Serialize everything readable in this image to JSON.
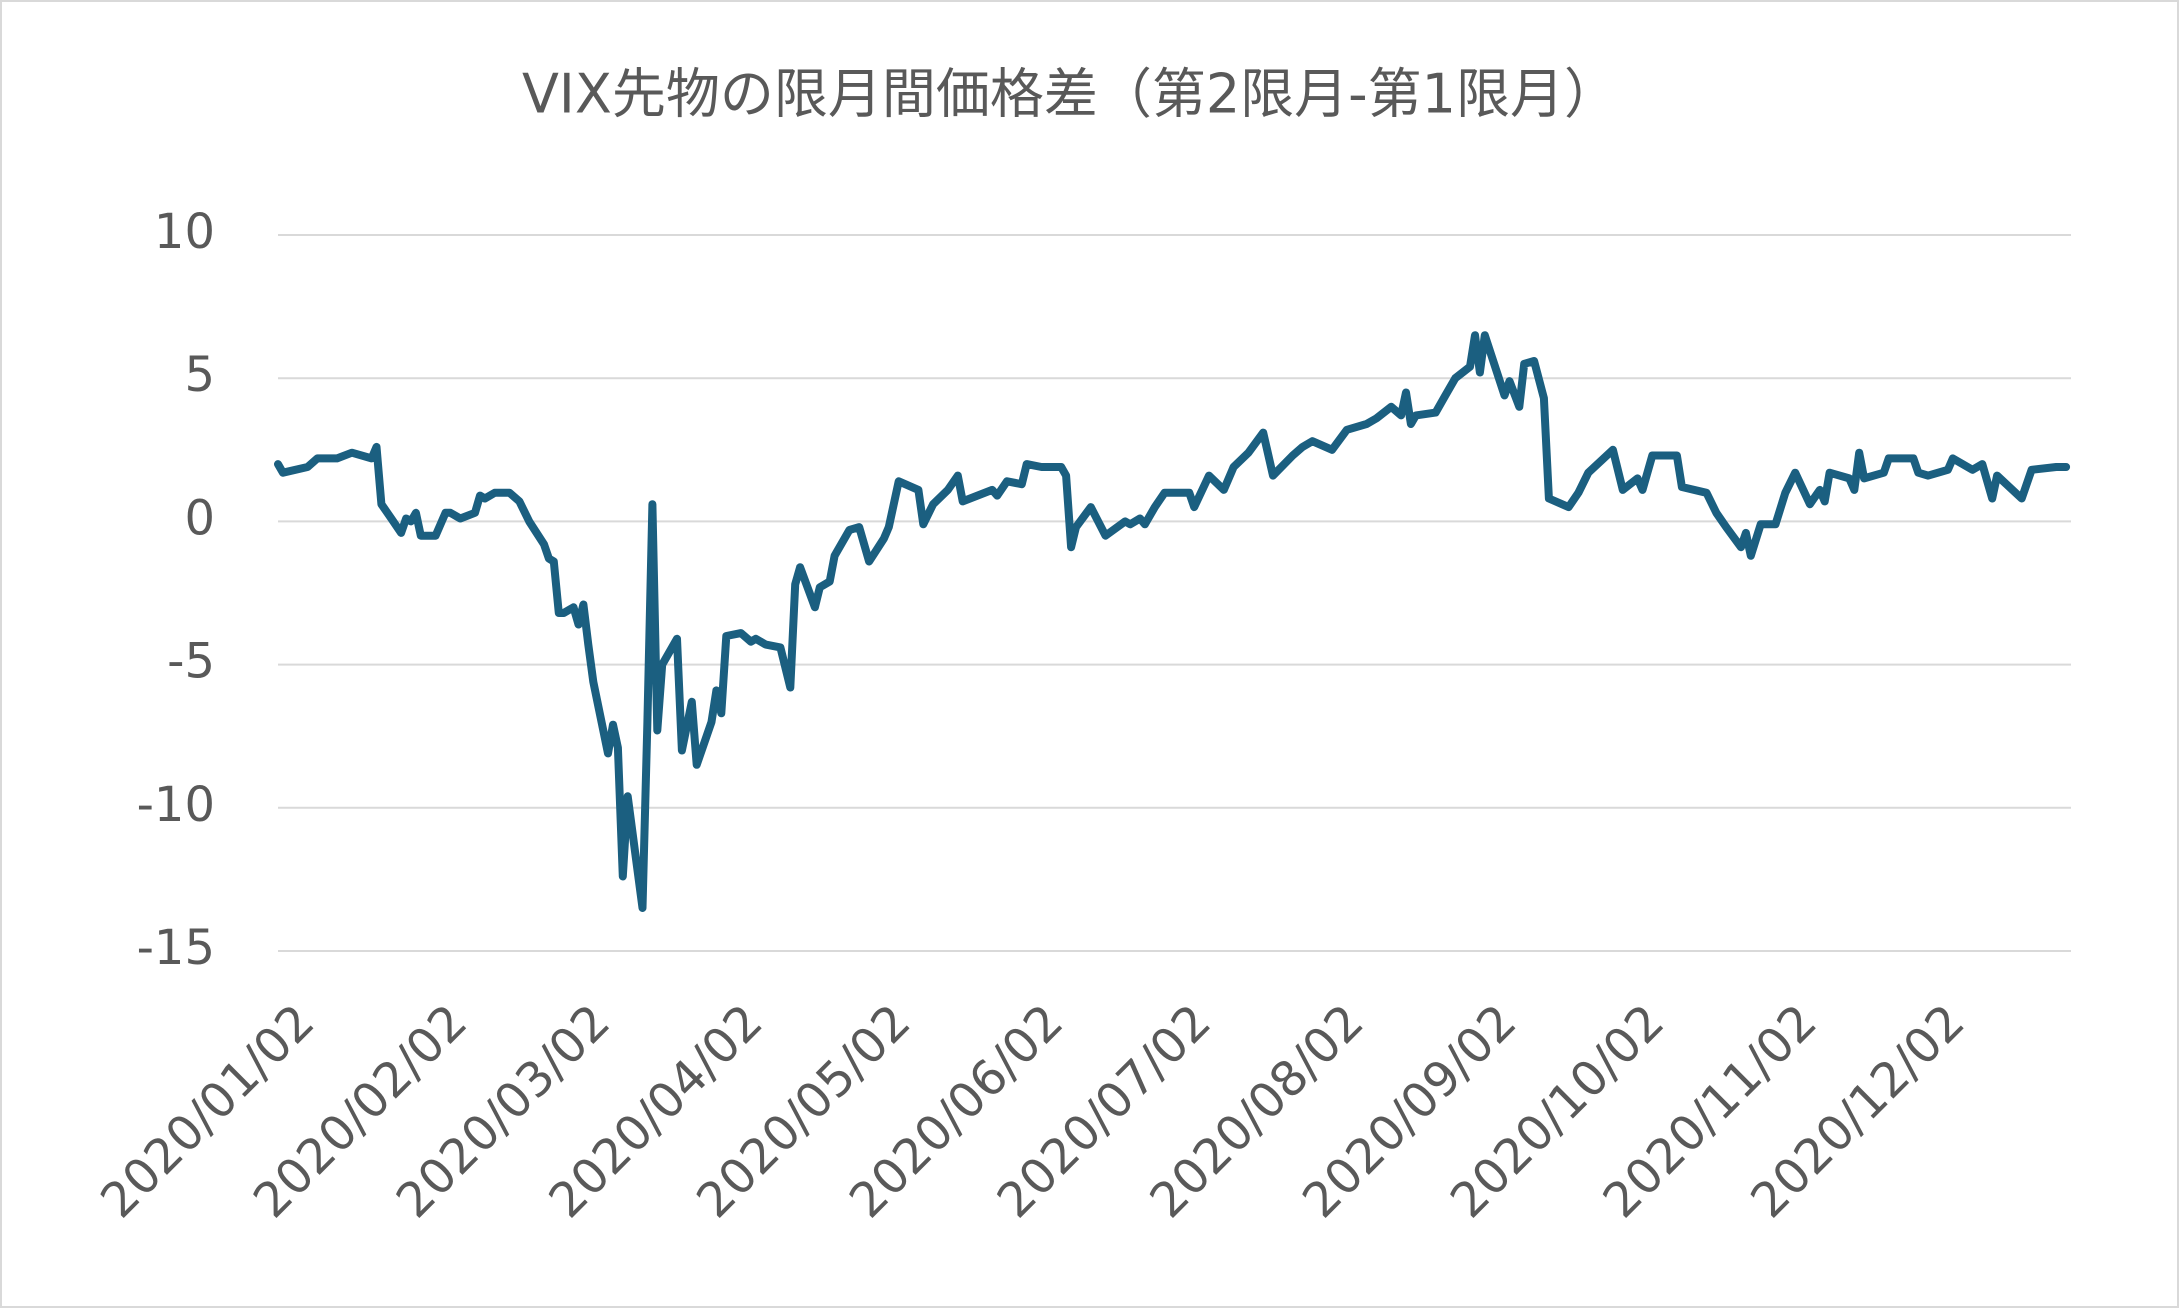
{
  "chart_data": {
    "type": "line",
    "title": "VIX先物の限月間価格差（第2限月-第1限月）",
    "color": "#1b5f80",
    "grid": true,
    "ylim": [
      -15,
      10
    ],
    "yticks": [
      -15,
      -10,
      -5,
      0,
      5,
      10
    ],
    "xlim": [
      "2020/01/02",
      "2020/12/31"
    ],
    "xticks": [
      "2020/01/02",
      "2020/02/02",
      "2020/03/02",
      "2020/04/02",
      "2020/05/02",
      "2020/06/02",
      "2020/07/02",
      "2020/08/02",
      "2020/09/02",
      "2020/10/02",
      "2020/11/02",
      "2020/12/02"
    ],
    "x": [
      "2020/01/02",
      "2020/01/03",
      "2020/01/08",
      "2020/01/10",
      "2020/01/14",
      "2020/01/17",
      "2020/01/21",
      "2020/01/22",
      "2020/01/23",
      "2020/01/25",
      "2020/01/27",
      "2020/01/28",
      "2020/01/29",
      "2020/01/30",
      "2020/01/31",
      "2020/02/03",
      "2020/02/05",
      "2020/02/06",
      "2020/02/08",
      "2020/02/11",
      "2020/02/12",
      "2020/02/13",
      "2020/02/15",
      "2020/02/18",
      "2020/02/20",
      "2020/02/22",
      "2020/02/25",
      "2020/02/26",
      "2020/02/27",
      "2020/02/28",
      "2020/02/29",
      "2020/03/02",
      "2020/03/03",
      "2020/03/04",
      "2020/03/05",
      "2020/03/06",
      "2020/03/09",
      "2020/03/10",
      "2020/03/11",
      "2020/03/12",
      "2020/03/13",
      "2020/03/16",
      "2020/03/17",
      "2020/03/18",
      "2020/03/19",
      "2020/03/20",
      "2020/03/23",
      "2020/03/24",
      "2020/03/26",
      "2020/03/27",
      "2020/03/30",
      "2020/03/31",
      "2020/04/01",
      "2020/04/02",
      "2020/04/05",
      "2020/04/07",
      "2020/04/08",
      "2020/04/10",
      "2020/04/13",
      "2020/04/15",
      "2020/04/16",
      "2020/04/17",
      "2020/04/20",
      "2020/04/21",
      "2020/04/23",
      "2020/04/24",
      "2020/04/27",
      "2020/04/29",
      "2020/05/01",
      "2020/05/04",
      "2020/05/05",
      "2020/05/07",
      "2020/05/11",
      "2020/05/12",
      "2020/05/14",
      "2020/05/17",
      "2020/05/19",
      "2020/05/20",
      "2020/05/26",
      "2020/05/27",
      "2020/05/29",
      "2020/06/01",
      "2020/06/02",
      "2020/06/05",
      "2020/06/09",
      "2020/06/10",
      "2020/06/11",
      "2020/06/12",
      "2020/06/15",
      "2020/06/18",
      "2020/06/22",
      "2020/06/23",
      "2020/06/25",
      "2020/06/26",
      "2020/06/28",
      "2020/06/30",
      "2020/07/05",
      "2020/07/06",
      "2020/07/09",
      "2020/07/12",
      "2020/07/14",
      "2020/07/17",
      "2020/07/20",
      "2020/07/22",
      "2020/07/26",
      "2020/07/28",
      "2020/07/30",
      "2020/08/03",
      "2020/08/06",
      "2020/08/10",
      "2020/08/12",
      "2020/08/15",
      "2020/08/17",
      "2020/08/18",
      "2020/08/19",
      "2020/08/20",
      "2020/08/24",
      "2020/08/26",
      "2020/08/28",
      "2020/08/31",
      "2020/09/01",
      "2020/09/02",
      "2020/09/03",
      "2020/09/07",
      "2020/09/08",
      "2020/09/10",
      "2020/09/11",
      "2020/09/13",
      "2020/09/15",
      "2020/09/16",
      "2020/09/20",
      "2020/09/22",
      "2020/09/24",
      "2020/09/29",
      "2020/10/01",
      "2020/10/04",
      "2020/10/05",
      "2020/10/07",
      "2020/10/12",
      "2020/10/13",
      "2020/10/18",
      "2020/10/20",
      "2020/10/22",
      "2020/10/25",
      "2020/10/26",
      "2020/10/27",
      "2020/10/29",
      "2020/11/01",
      "2020/11/03",
      "2020/11/05",
      "2020/11/08",
      "2020/11/10",
      "2020/11/11",
      "2020/11/12",
      "2020/11/16",
      "2020/11/17",
      "2020/11/18",
      "2020/11/19",
      "2020/11/23",
      "2020/11/24",
      "2020/11/29",
      "2020/11/30",
      "2020/12/02",
      "2020/12/06",
      "2020/12/07",
      "2020/12/11",
      "2020/12/13",
      "2020/12/15",
      "2020/12/16",
      "2020/12/21",
      "2020/12/23",
      "2020/12/28",
      "2020/12/30"
    ],
    "values": [
      2.0,
      1.7,
      1.9,
      2.2,
      2.2,
      2.4,
      2.2,
      2.6,
      0.6,
      0.1,
      -0.4,
      0.1,
      0,
      0.3,
      -0.5,
      -0.5,
      0.3,
      0.3,
      0.1,
      0.3,
      0.9,
      0.8,
      1.0,
      1.0,
      0.7,
      0,
      -0.8,
      -1.3,
      -1.4,
      -3.2,
      -3.2,
      -3.0,
      -3.6,
      -2.9,
      -4.3,
      -5.6,
      -8.1,
      -7.1,
      -7.9,
      -12.4,
      -9.6,
      -13.5,
      -7.0,
      0.6,
      -7.3,
      -5.0,
      -4.1,
      -8.0,
      -6.3,
      -8.5,
      -7.0,
      -5.9,
      -6.7,
      -4.0,
      -3.9,
      -4.2,
      -4.1,
      -4.3,
      -4.4,
      -5.8,
      -2.2,
      -1.6,
      -3.0,
      -2.3,
      -2.1,
      -1.2,
      -0.3,
      -0.2,
      -1.4,
      -0.6,
      -0.2,
      1.4,
      1.1,
      -0.1,
      0.6,
      1.1,
      1.6,
      0.7,
      1.1,
      0.9,
      1.4,
      1.3,
      2.0,
      1.9,
      1.9,
      1.6,
      -0.9,
      -0.2,
      0.5,
      -0.5,
      0,
      -0.1,
      0.1,
      -0.1,
      0.5,
      1.0,
      1.0,
      0.5,
      1.6,
      1.1,
      1.9,
      2.4,
      3.1,
      1.6,
      2.3,
      2.6,
      2.8,
      2.5,
      3.2,
      3.4,
      3.6,
      4.0,
      3.7,
      4.5,
      3.4,
      3.7,
      3.8,
      4.4,
      5.0,
      5.4,
      6.5,
      5.2,
      6.5,
      4.4,
      4.9,
      4.0,
      5.5,
      5.6,
      4.3,
      0.8,
      0.5,
      1.0,
      1.7,
      2.5,
      1.1,
      1.5,
      1.1,
      2.3,
      2.3,
      1.2,
      1.0,
      0.3,
      -0.2,
      -0.9,
      -0.4,
      -1.2,
      -0.1,
      -0.1,
      1.0,
      1.7,
      0.6,
      1.1,
      0.7,
      1.7,
      1.5,
      1.1,
      2.4,
      1.5,
      1.7,
      2.2,
      2.2,
      1.7,
      1.6,
      1.8,
      2.2,
      1.8,
      2.0,
      0.8,
      1.6,
      0.8,
      1.8,
      1.9,
      1.9
    ]
  }
}
